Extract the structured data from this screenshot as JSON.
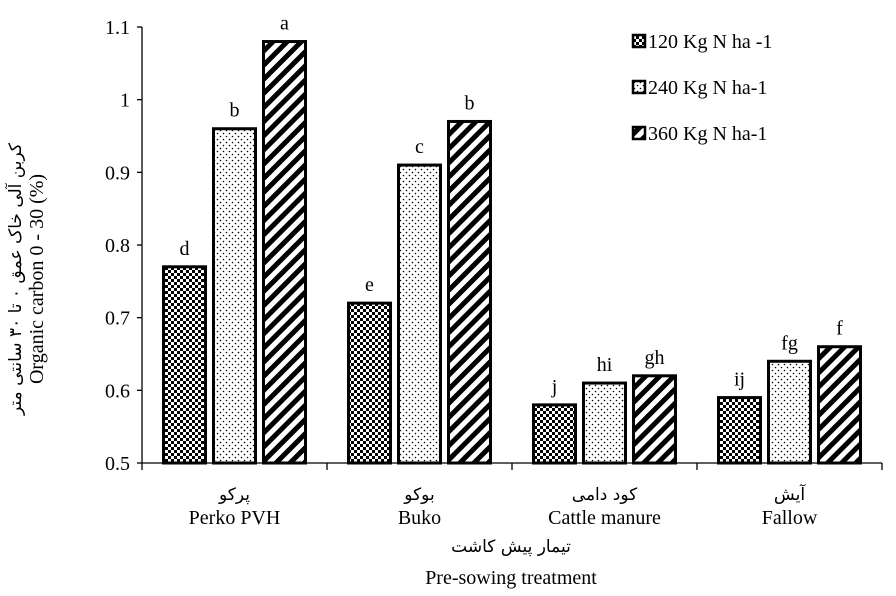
{
  "chart_data": {
    "type": "bar",
    "categories": [
      {
        "fa": "پرکو",
        "en": "Perko PVH"
      },
      {
        "fa": "بوکو",
        "en": "Buko"
      },
      {
        "fa": "کود دامی",
        "en": "Cattle manure"
      },
      {
        "fa": "آیش",
        "en": "Fallow"
      }
    ],
    "series": [
      {
        "name": "120 Kg N ha -1",
        "values": [
          0.77,
          0.72,
          0.58,
          0.59
        ],
        "letters": [
          "d",
          "e",
          "j",
          "ij"
        ]
      },
      {
        "name": "240 Kg N ha-1",
        "values": [
          0.96,
          0.91,
          0.61,
          0.64
        ],
        "letters": [
          "b",
          "c",
          "hi",
          "fg"
        ]
      },
      {
        "name": "360 Kg N ha-1",
        "values": [
          1.08,
          0.97,
          0.62,
          0.66
        ],
        "letters": [
          "a",
          "b",
          "gh",
          "f"
        ]
      }
    ],
    "ylabel_fa": "کربن آلی خاک عمق ۰ تا ۳۰ سانتی متر",
    "ylabel_en": "Organic carbon 0 - 30 (%)",
    "xlabel_fa": "تیمار پیش کاشت",
    "xlabel_en": "Pre-sowing treatment",
    "ylim": [
      0.5,
      1.1
    ],
    "yticks": [
      "0.5",
      "0.6",
      "0.7",
      "0.8",
      "0.9",
      "1",
      "1.1"
    ],
    "grid": false,
    "legend_position": "top-right",
    "patterns": [
      "checker",
      "dots",
      "diagonal-stripes"
    ]
  }
}
